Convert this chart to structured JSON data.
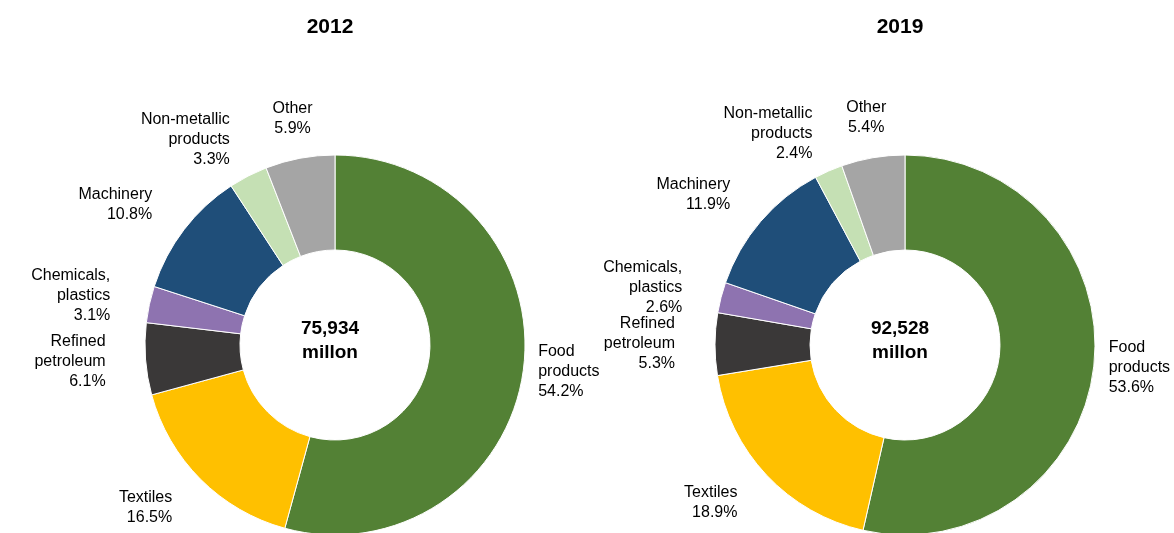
{
  "chart_data": [
    {
      "type": "donut",
      "title": "2012",
      "categories": [
        "Food products",
        "Textiles",
        "Refined petroleum",
        "Chemicals, plastics",
        "Machinery",
        "Non-metallic products",
        "Other"
      ],
      "values": [
        54.2,
        16.5,
        6.1,
        3.1,
        10.8,
        3.3,
        5.9
      ],
      "value_labels": [
        "54.2%",
        "16.5%",
        "6.1%",
        "3.1%",
        "10.8%",
        "3.3%",
        "5.9%"
      ],
      "colors": [
        "#538135",
        "#ffc000",
        "#3a3838",
        "#8e73b0",
        "#1f4e79",
        "#c5e0b4",
        "#a5a5a5"
      ],
      "annotations": [
        "75,934 millon"
      ]
    },
    {
      "type": "donut",
      "title": "2019",
      "categories": [
        "Food products",
        "Textiles",
        "Refined petroleum",
        "Chemicals, plastics",
        "Machinery",
        "Non-metallic products",
        "Other"
      ],
      "values": [
        53.6,
        18.9,
        5.3,
        2.6,
        11.9,
        2.4,
        5.4
      ],
      "value_labels": [
        "53.6%",
        "18.9%",
        "5.3%",
        "2.6%",
        "11.9%",
        "2.4%",
        "5.4%"
      ],
      "colors": [
        "#538135",
        "#ffc000",
        "#3a3838",
        "#8e73b0",
        "#1f4e79",
        "#c5e0b4",
        "#a5a5a5"
      ],
      "annotations": [
        "92,528 millon"
      ]
    }
  ]
}
